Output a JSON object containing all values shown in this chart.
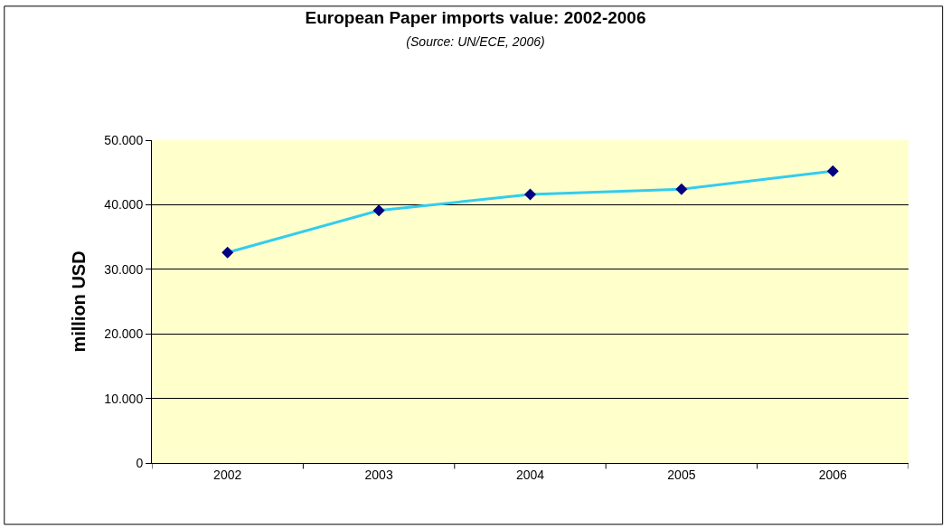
{
  "chart_data": {
    "type": "line",
    "title": "European Paper imports value: 2002-2006",
    "subtitle": "(Source: UN/ECE, 2006)",
    "ylabel": "million USD",
    "categories": [
      "2002",
      "2003",
      "2004",
      "2005",
      "2006"
    ],
    "series": [
      {
        "color": "#33ccee",
        "values": [
          32600,
          39100,
          41600,
          42400,
          45200
        ]
      }
    ],
    "ylim": [
      0,
      50000
    ],
    "yticks": [
      {
        "value": 0,
        "label": "0"
      },
      {
        "value": 10000,
        "label": "10.000"
      },
      {
        "value": 20000,
        "label": "20.000"
      },
      {
        "value": 30000,
        "label": "30.000"
      },
      {
        "value": 40000,
        "label": "40.000"
      },
      {
        "value": 50000,
        "label": "50.000"
      }
    ],
    "grid": "y",
    "marker": "diamond",
    "line_style": "solid"
  }
}
